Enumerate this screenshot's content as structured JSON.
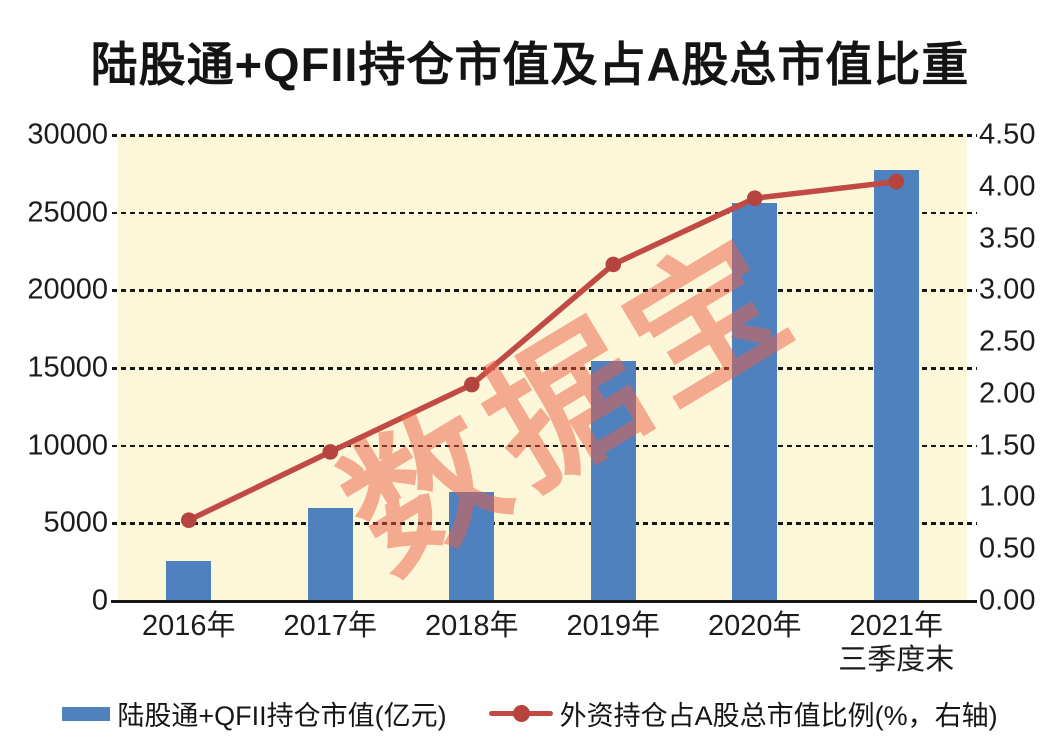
{
  "title": "陆股通+QFII持仓市值及占A股总市值比重",
  "watermark": {
    "text": "数据宝",
    "color": "#ED5F46",
    "opacity": 0.5,
    "rotation_deg": -31
  },
  "chart_data": {
    "type": "bar",
    "combo": "bar+line",
    "title": "陆股通+QFII持仓市值及占A股总市值比重",
    "categories": [
      "2016年",
      "2017年",
      "2018年",
      "2019年",
      "2020年",
      "2021年三季度末"
    ],
    "x_tick_display": [
      [
        "2016年"
      ],
      [
        "2017年"
      ],
      [
        "2018年"
      ],
      [
        "2019年"
      ],
      [
        "2020年"
      ],
      [
        "2021年",
        "三季度末"
      ]
    ],
    "series": [
      {
        "name": "陆股通+QFII持仓市值(亿元)",
        "type": "bar",
        "axis": "left",
        "color": "#4E81BD",
        "values": [
          2600,
          6000,
          7000,
          15450,
          25600,
          27750
        ]
      },
      {
        "name": "外资持仓占A股总市值比例(%，右轴)",
        "type": "line",
        "axis": "right",
        "color": "#C14B44",
        "marker_color": "#B5443F",
        "values": [
          0.78,
          1.44,
          2.09,
          3.25,
          3.89,
          4.05
        ]
      }
    ],
    "left_axis": {
      "min": 0,
      "max": 30000,
      "step": 5000,
      "tick_labels": [
        "0",
        "5000",
        "10000",
        "15000",
        "20000",
        "25000",
        "30000"
      ]
    },
    "right_axis": {
      "min": 0,
      "max": 4.5,
      "step": 0.5,
      "tick_labels": [
        "0.00",
        "0.50",
        "1.00",
        "1.50",
        "2.00",
        "2.50",
        "3.00",
        "3.50",
        "4.00",
        "4.50"
      ]
    },
    "plot_background": "#FCF7D9",
    "grid": "horizontal dotted black lines at left-axis 5000 steps",
    "legend_position": "bottom"
  },
  "legend": {
    "items": [
      {
        "label": "陆股通+QFII持仓市值(亿元)",
        "swatch": "bar",
        "color": "#4E81BD"
      },
      {
        "label": "外资持仓占A股总市值比例(%，右轴)",
        "swatch": "line",
        "color": "#C14B44",
        "dot_color": "#B5443F"
      }
    ]
  }
}
